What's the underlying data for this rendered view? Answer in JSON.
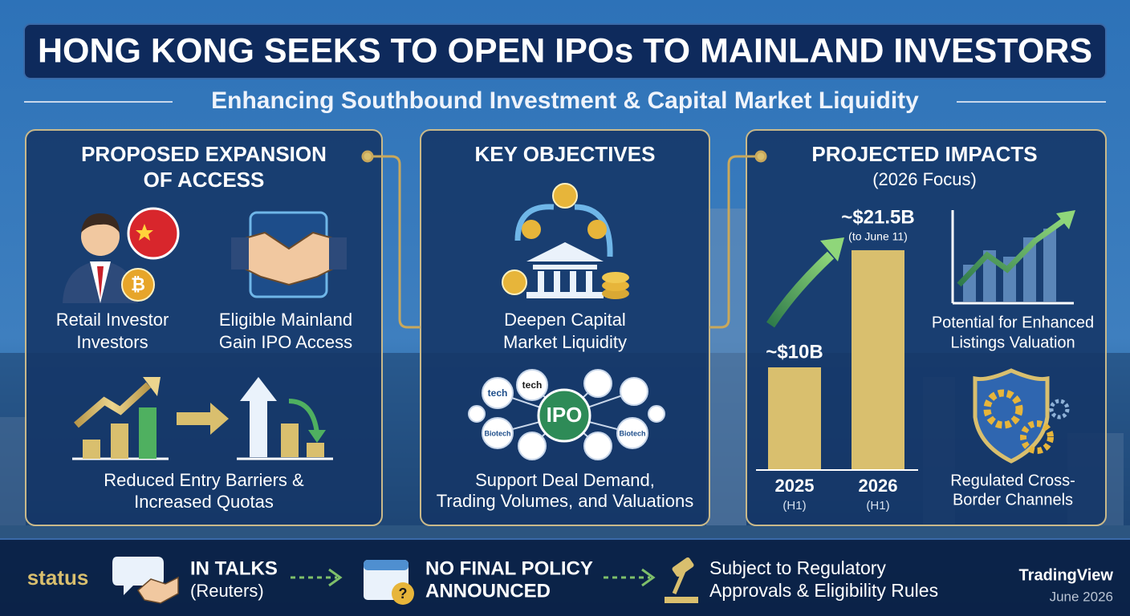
{
  "header": {
    "title": "HONG KONG SEEKS TO OPEN IPOs TO MAINLAND INVESTORS",
    "subtitle": "Enhancing Southbound Investment & Capital Market Liquidity"
  },
  "access": {
    "title_lines": [
      "PROPOSED EXPANSION",
      "OF ACCESS"
    ],
    "items": [
      [
        "Retail Investor",
        "Investors"
      ],
      [
        "Eligible Mainland",
        "Gain IPO Access"
      ],
      [
        "Reduced Entry Barriers &",
        "Increased Quotas"
      ]
    ]
  },
  "objectives": {
    "title": "KEY OBJECTIVES",
    "items": [
      [
        "Deepen Capital",
        "Market Liquidity"
      ],
      [
        "Support Deal Demand,",
        "Trading Volumes, and Valuations"
      ]
    ],
    "hub_label": "IPO",
    "bubble_labels": [
      "tech",
      "tech",
      "Biotech",
      "Biotech"
    ]
  },
  "impacts": {
    "title": "PROJECTED IMPACTS",
    "subtitle": "(2026 Focus)",
    "items": [
      [
        "Potential for Enhanced",
        "Listings Valuation"
      ],
      [
        "Regulated Cross-",
        "Border Channels"
      ]
    ]
  },
  "chart_data": {
    "type": "bar",
    "categories": [
      "2025",
      "2026"
    ],
    "period_labels": [
      "(H1)",
      "(H1)"
    ],
    "values": [
      10,
      21.5
    ],
    "value_labels": [
      "~$10B",
      "~$21.5B"
    ],
    "value_notes": [
      null,
      "(to June 11)"
    ],
    "color": "#d9bf6e"
  },
  "status": {
    "label": "status",
    "steps": [
      [
        "IN TALKS",
        "(Reuters)"
      ],
      [
        "NO FINAL POLICY",
        "ANNOUNCED"
      ],
      [
        "Subject to Regulatory",
        "Approvals & Eligibility Rules"
      ]
    ],
    "brand": "TradingView",
    "date": "June 2026"
  }
}
